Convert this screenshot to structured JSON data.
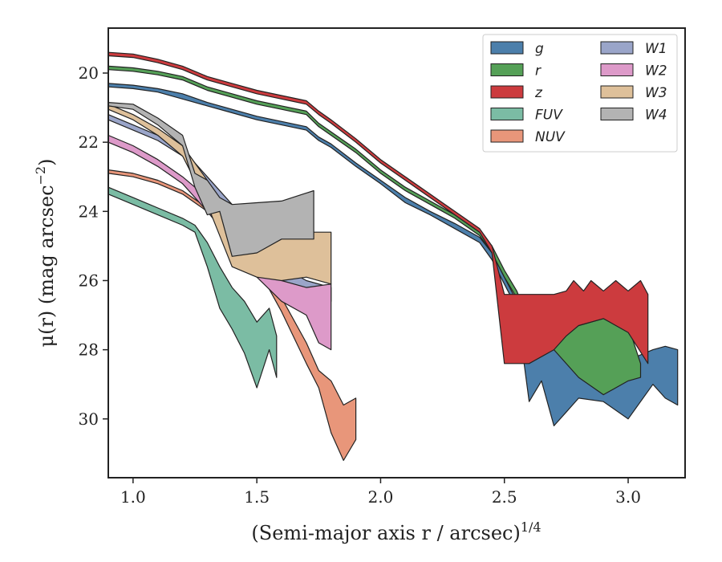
{
  "chart_data": {
    "type": "area",
    "xlabel": "(Semi-major axis r / arcsec)",
    "xlabel_exponent": "1/4",
    "ylabel": "μ(r) (mag arcsec",
    "ylabel_exponent": "−2",
    "ylabel_close": ")",
    "xlim": [
      0.9,
      3.23
    ],
    "ylim": [
      31.7,
      18.7
    ],
    "y_inverted": true,
    "xticks": [
      1.0,
      1.5,
      2.0,
      2.5,
      3.0
    ],
    "xtick_labels": [
      "1.0",
      "1.5",
      "2.0",
      "2.5",
      "3.0"
    ],
    "yticks": [
      20,
      22,
      24,
      26,
      28,
      30
    ],
    "ytick_labels": [
      "20",
      "22",
      "24",
      "26",
      "28",
      "30"
    ],
    "grid": false,
    "legend_position": "top-right",
    "legend_columns": 2,
    "series": [
      {
        "name": "g",
        "color": "#4c7fab",
        "upper": [
          [
            0.9,
            20.3
          ],
          [
            1.0,
            20.35
          ],
          [
            1.1,
            20.45
          ],
          [
            1.2,
            20.6
          ],
          [
            1.3,
            20.85
          ],
          [
            1.4,
            21.05
          ],
          [
            1.5,
            21.25
          ],
          [
            1.6,
            21.4
          ],
          [
            1.7,
            21.55
          ],
          [
            1.75,
            21.85
          ],
          [
            1.8,
            22.05
          ],
          [
            1.9,
            22.6
          ],
          [
            2.0,
            23.1
          ],
          [
            2.1,
            23.6
          ],
          [
            2.2,
            24.0
          ],
          [
            2.3,
            24.35
          ],
          [
            2.4,
            24.75
          ],
          [
            2.45,
            25.2
          ],
          [
            2.5,
            25.9
          ],
          [
            2.55,
            26.6
          ],
          [
            2.6,
            27.0
          ],
          [
            2.65,
            27.3
          ],
          [
            2.7,
            26.9
          ],
          [
            2.75,
            27.5
          ],
          [
            2.8,
            27.7
          ],
          [
            2.9,
            28.0
          ],
          [
            3.0,
            28.3
          ],
          [
            3.1,
            28.0
          ],
          [
            3.15,
            27.9
          ],
          [
            3.2,
            28.0
          ]
        ],
        "lower": [
          [
            0.9,
            20.4
          ],
          [
            1.0,
            20.45
          ],
          [
            1.1,
            20.55
          ],
          [
            1.2,
            20.75
          ],
          [
            1.3,
            20.95
          ],
          [
            1.4,
            21.15
          ],
          [
            1.5,
            21.35
          ],
          [
            1.6,
            21.5
          ],
          [
            1.7,
            21.65
          ],
          [
            1.75,
            21.95
          ],
          [
            1.8,
            22.15
          ],
          [
            1.9,
            22.7
          ],
          [
            2.0,
            23.2
          ],
          [
            2.1,
            23.75
          ],
          [
            2.2,
            24.1
          ],
          [
            2.3,
            24.5
          ],
          [
            2.4,
            24.9
          ],
          [
            2.45,
            25.4
          ],
          [
            2.5,
            26.1
          ],
          [
            2.55,
            26.8
          ],
          [
            2.6,
            29.5
          ],
          [
            2.65,
            28.9
          ],
          [
            2.7,
            30.2
          ],
          [
            2.75,
            29.8
          ],
          [
            2.8,
            29.4
          ],
          [
            2.9,
            29.5
          ],
          [
            3.0,
            30.0
          ],
          [
            3.1,
            29.0
          ],
          [
            3.15,
            29.4
          ],
          [
            3.2,
            29.6
          ]
        ]
      },
      {
        "name": "r",
        "color": "#55a057",
        "upper": [
          [
            0.9,
            19.8
          ],
          [
            1.0,
            19.85
          ],
          [
            1.1,
            19.95
          ],
          [
            1.2,
            20.1
          ],
          [
            1.3,
            20.4
          ],
          [
            1.4,
            20.6
          ],
          [
            1.5,
            20.8
          ],
          [
            1.6,
            20.95
          ],
          [
            1.7,
            21.1
          ],
          [
            1.75,
            21.45
          ],
          [
            1.8,
            21.7
          ],
          [
            1.9,
            22.2
          ],
          [
            2.0,
            22.8
          ],
          [
            2.1,
            23.3
          ],
          [
            2.2,
            23.7
          ],
          [
            2.3,
            24.1
          ],
          [
            2.4,
            24.6
          ],
          [
            2.45,
            25.0
          ],
          [
            2.5,
            25.7
          ],
          [
            2.55,
            26.3
          ],
          [
            2.6,
            27.2
          ],
          [
            2.7,
            27.6
          ],
          [
            2.8,
            27.3
          ],
          [
            2.9,
            27.1
          ],
          [
            3.0,
            27.3
          ],
          [
            3.05,
            28.4
          ]
        ],
        "lower": [
          [
            0.9,
            19.9
          ],
          [
            1.0,
            19.95
          ],
          [
            1.1,
            20.05
          ],
          [
            1.2,
            20.2
          ],
          [
            1.3,
            20.5
          ],
          [
            1.4,
            20.7
          ],
          [
            1.5,
            20.9
          ],
          [
            1.6,
            21.05
          ],
          [
            1.7,
            21.2
          ],
          [
            1.75,
            21.55
          ],
          [
            1.8,
            21.8
          ],
          [
            1.9,
            22.3
          ],
          [
            2.0,
            22.9
          ],
          [
            2.1,
            23.4
          ],
          [
            2.2,
            23.8
          ],
          [
            2.3,
            24.2
          ],
          [
            2.4,
            24.7
          ],
          [
            2.45,
            25.2
          ],
          [
            2.5,
            25.9
          ],
          [
            2.55,
            26.5
          ],
          [
            2.6,
            27.6
          ],
          [
            2.7,
            28.0
          ],
          [
            2.8,
            28.8
          ],
          [
            2.9,
            29.3
          ],
          [
            3.0,
            28.9
          ],
          [
            3.05,
            28.8
          ]
        ]
      },
      {
        "name": "z",
        "color": "#cc3b3e",
        "upper": [
          [
            0.9,
            19.4
          ],
          [
            1.0,
            19.45
          ],
          [
            1.1,
            19.6
          ],
          [
            1.2,
            19.8
          ],
          [
            1.3,
            20.1
          ],
          [
            1.4,
            20.3
          ],
          [
            1.5,
            20.5
          ],
          [
            1.6,
            20.65
          ],
          [
            1.7,
            20.8
          ],
          [
            1.75,
            21.1
          ],
          [
            1.8,
            21.35
          ],
          [
            1.9,
            21.9
          ],
          [
            2.0,
            22.5
          ],
          [
            2.1,
            23.0
          ],
          [
            2.2,
            23.5
          ],
          [
            2.3,
            24.0
          ],
          [
            2.4,
            24.5
          ],
          [
            2.45,
            25.0
          ],
          [
            2.5,
            26.4
          ],
          [
            2.6,
            26.4
          ],
          [
            2.7,
            26.4
          ],
          [
            2.75,
            26.3
          ],
          [
            2.78,
            26.0
          ],
          [
            2.82,
            26.3
          ],
          [
            2.85,
            26.0
          ],
          [
            2.9,
            26.3
          ],
          [
            2.95,
            26.0
          ],
          [
            3.0,
            26.3
          ],
          [
            3.05,
            26.0
          ],
          [
            3.08,
            26.4
          ]
        ],
        "lower": [
          [
            0.9,
            19.5
          ],
          [
            1.0,
            19.55
          ],
          [
            1.1,
            19.7
          ],
          [
            1.2,
            19.9
          ],
          [
            1.3,
            20.2
          ],
          [
            1.4,
            20.4
          ],
          [
            1.5,
            20.6
          ],
          [
            1.6,
            20.75
          ],
          [
            1.7,
            20.9
          ],
          [
            1.75,
            21.2
          ],
          [
            1.8,
            21.45
          ],
          [
            1.9,
            22.0
          ],
          [
            2.0,
            22.6
          ],
          [
            2.1,
            23.1
          ],
          [
            2.2,
            23.6
          ],
          [
            2.3,
            24.1
          ],
          [
            2.4,
            24.6
          ],
          [
            2.45,
            25.2
          ],
          [
            2.5,
            28.4
          ],
          [
            2.6,
            28.4
          ],
          [
            2.7,
            28.0
          ],
          [
            2.75,
            27.6
          ],
          [
            2.8,
            27.3
          ],
          [
            2.9,
            27.1
          ],
          [
            3.0,
            27.5
          ],
          [
            3.08,
            28.4
          ]
        ]
      },
      {
        "name": "FUV",
        "color": "#7bbca4",
        "upper": [
          [
            0.9,
            23.3
          ],
          [
            1.0,
            23.6
          ],
          [
            1.1,
            23.9
          ],
          [
            1.2,
            24.2
          ],
          [
            1.25,
            24.4
          ],
          [
            1.3,
            24.9
          ],
          [
            1.35,
            25.6
          ],
          [
            1.4,
            26.2
          ],
          [
            1.45,
            26.6
          ],
          [
            1.5,
            27.2
          ],
          [
            1.55,
            26.8
          ],
          [
            1.58,
            27.6
          ]
        ],
        "lower": [
          [
            0.9,
            23.5
          ],
          [
            1.0,
            23.8
          ],
          [
            1.1,
            24.1
          ],
          [
            1.2,
            24.4
          ],
          [
            1.25,
            24.6
          ],
          [
            1.3,
            25.6
          ],
          [
            1.35,
            26.8
          ],
          [
            1.4,
            27.4
          ],
          [
            1.45,
            28.1
          ],
          [
            1.5,
            29.1
          ],
          [
            1.55,
            28.0
          ],
          [
            1.58,
            28.8
          ]
        ]
      },
      {
        "name": "NUV",
        "color": "#e8967a",
        "upper": [
          [
            0.9,
            22.8
          ],
          [
            1.0,
            22.9
          ],
          [
            1.1,
            23.1
          ],
          [
            1.2,
            23.4
          ],
          [
            1.3,
            23.9
          ],
          [
            1.4,
            24.6
          ],
          [
            1.5,
            25.4
          ],
          [
            1.6,
            26.5
          ],
          [
            1.7,
            27.8
          ],
          [
            1.75,
            28.6
          ],
          [
            1.8,
            28.9
          ],
          [
            1.85,
            29.6
          ],
          [
            1.9,
            29.4
          ]
        ],
        "lower": [
          [
            0.9,
            22.9
          ],
          [
            1.0,
            23.0
          ],
          [
            1.1,
            23.2
          ],
          [
            1.2,
            23.5
          ],
          [
            1.3,
            24.0
          ],
          [
            1.4,
            24.8
          ],
          [
            1.5,
            25.6
          ],
          [
            1.6,
            26.9
          ],
          [
            1.7,
            28.4
          ],
          [
            1.75,
            29.1
          ],
          [
            1.8,
            30.4
          ],
          [
            1.85,
            31.2
          ],
          [
            1.9,
            30.6
          ]
        ]
      },
      {
        "name": "W1",
        "color": "#9aa5c9",
        "upper": [
          [
            0.9,
            21.2
          ],
          [
            1.0,
            21.5
          ],
          [
            1.1,
            21.8
          ],
          [
            1.2,
            22.2
          ],
          [
            1.3,
            23.0
          ],
          [
            1.4,
            23.8
          ],
          [
            1.5,
            24.8
          ],
          [
            1.6,
            25.6
          ],
          [
            1.7,
            26.0
          ],
          [
            1.8,
            26.2
          ]
        ],
        "lower": [
          [
            0.9,
            21.35
          ],
          [
            1.0,
            21.65
          ],
          [
            1.1,
            21.95
          ],
          [
            1.2,
            22.4
          ],
          [
            1.3,
            23.3
          ],
          [
            1.4,
            24.2
          ],
          [
            1.5,
            25.3
          ],
          [
            1.6,
            26.0
          ],
          [
            1.7,
            26.3
          ],
          [
            1.8,
            26.6
          ]
        ]
      },
      {
        "name": "W2",
        "color": "#dd9ac9",
        "upper": [
          [
            0.9,
            21.8
          ],
          [
            1.0,
            22.1
          ],
          [
            1.1,
            22.5
          ],
          [
            1.2,
            23.0
          ],
          [
            1.3,
            23.6
          ],
          [
            1.4,
            24.4
          ],
          [
            1.5,
            25.4
          ],
          [
            1.6,
            26.0
          ],
          [
            1.7,
            26.2
          ],
          [
            1.8,
            26.1
          ]
        ],
        "lower": [
          [
            0.9,
            22.0
          ],
          [
            1.0,
            22.3
          ],
          [
            1.1,
            22.7
          ],
          [
            1.2,
            23.2
          ],
          [
            1.3,
            24.0
          ],
          [
            1.4,
            24.9
          ],
          [
            1.5,
            25.9
          ],
          [
            1.6,
            26.6
          ],
          [
            1.7,
            27.0
          ],
          [
            1.75,
            27.8
          ],
          [
            1.8,
            28.0
          ]
        ]
      },
      {
        "name": "W3",
        "color": "#dec09a",
        "upper": [
          [
            0.9,
            20.9
          ],
          [
            1.0,
            21.2
          ],
          [
            1.1,
            21.6
          ],
          [
            1.2,
            22.1
          ],
          [
            1.3,
            23.1
          ],
          [
            1.4,
            24.3
          ],
          [
            1.5,
            24.6
          ],
          [
            1.6,
            24.6
          ],
          [
            1.7,
            24.6
          ],
          [
            1.8,
            24.6
          ]
        ],
        "lower": [
          [
            0.9,
            21.05
          ],
          [
            1.0,
            21.35
          ],
          [
            1.1,
            21.8
          ],
          [
            1.2,
            22.4
          ],
          [
            1.3,
            23.8
          ],
          [
            1.4,
            25.6
          ],
          [
            1.5,
            25.9
          ],
          [
            1.6,
            26.0
          ],
          [
            1.7,
            25.9
          ],
          [
            1.8,
            26.1
          ]
        ]
      },
      {
        "name": "W4",
        "color": "#b3b3b3",
        "upper": [
          [
            0.9,
            20.85
          ],
          [
            1.0,
            20.9
          ],
          [
            1.1,
            21.3
          ],
          [
            1.2,
            21.8
          ],
          [
            1.25,
            22.9
          ],
          [
            1.3,
            23.1
          ],
          [
            1.35,
            23.6
          ],
          [
            1.4,
            23.8
          ],
          [
            1.5,
            23.75
          ],
          [
            1.6,
            23.7
          ],
          [
            1.73,
            23.4
          ]
        ],
        "lower": [
          [
            0.9,
            20.95
          ],
          [
            1.0,
            21.05
          ],
          [
            1.1,
            21.5
          ],
          [
            1.2,
            22.1
          ],
          [
            1.25,
            23.3
          ],
          [
            1.3,
            24.1
          ],
          [
            1.35,
            24.0
          ],
          [
            1.4,
            25.3
          ],
          [
            1.5,
            25.2
          ],
          [
            1.6,
            24.8
          ],
          [
            1.73,
            24.8
          ]
        ]
      }
    ]
  }
}
